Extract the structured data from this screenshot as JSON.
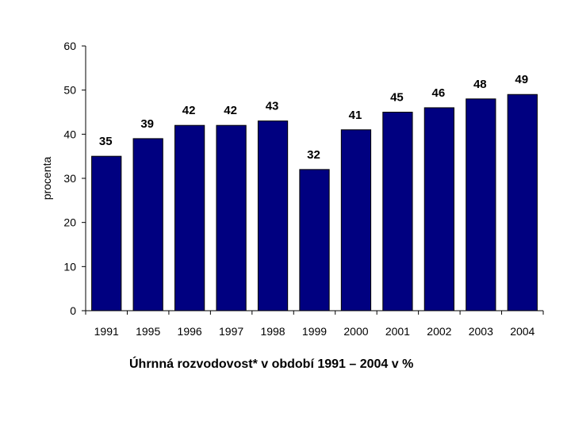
{
  "chart_data": {
    "type": "bar",
    "categories": [
      "1991",
      "1995",
      "1996",
      "1997",
      "1998",
      "1999",
      "2000",
      "2001",
      "2002",
      "2003",
      "2004"
    ],
    "values": [
      35,
      39,
      42,
      42,
      43,
      32,
      41,
      45,
      46,
      48,
      49
    ],
    "ylabel": "procenta",
    "xlabel": "Úhrnná rozvodovost* v období 1991 – 2004 v %",
    "ylim": [
      0,
      60
    ],
    "yticks": [
      0,
      10,
      20,
      30,
      40,
      50,
      60
    ],
    "grid": false,
    "bar_color": "#000080",
    "data_labels": true
  }
}
